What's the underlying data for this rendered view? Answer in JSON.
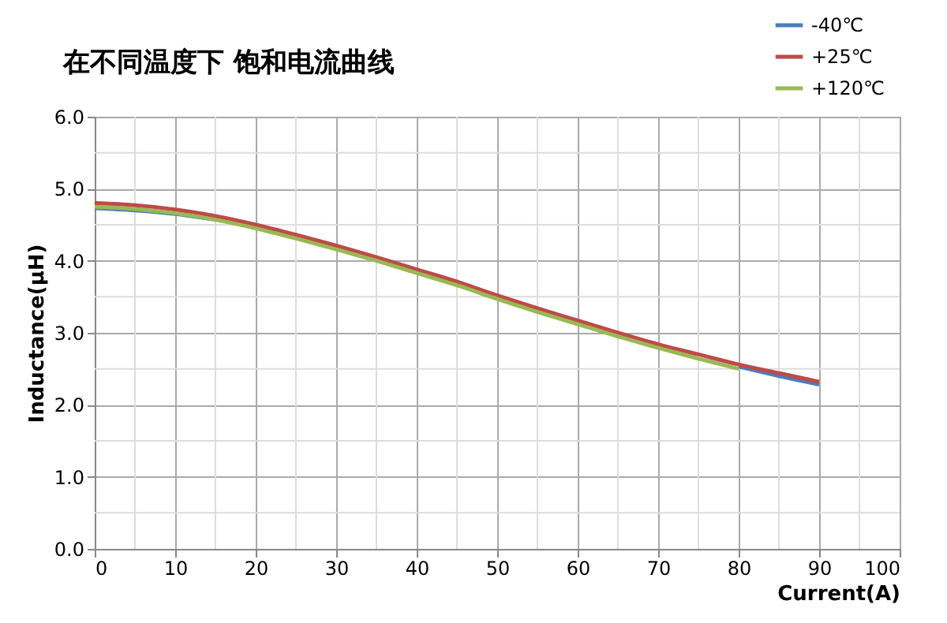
{
  "chart_data": {
    "type": "line",
    "title": "在不同温度下 饱和电流曲线",
    "xlabel": "Current(A)",
    "ylabel": "Inductance(μH)",
    "x": [
      0,
      5,
      10,
      15,
      20,
      25,
      30,
      35,
      40,
      45,
      50,
      55,
      60,
      65,
      70,
      75,
      80,
      85,
      90
    ],
    "series": [
      {
        "name": "-40℃",
        "color": "#4a7ebb",
        "values": [
          4.73,
          4.7,
          4.65,
          4.57,
          null,
          null,
          null,
          null,
          null,
          null,
          null,
          null,
          null,
          null,
          null,
          null,
          2.53,
          2.4,
          2.28
        ]
      },
      {
        "name": "+25℃",
        "color": "#be4b48",
        "values": [
          4.8,
          4.77,
          4.71,
          4.62,
          4.5,
          4.36,
          4.21,
          4.05,
          3.88,
          3.71,
          3.52,
          3.34,
          3.17,
          3.0,
          2.84,
          2.7,
          2.56,
          2.44,
          2.32
        ]
      },
      {
        "name": "+120℃",
        "color": "#98b954",
        "values": [
          4.75,
          4.72,
          4.66,
          4.57,
          4.45,
          4.31,
          4.16,
          4.0,
          3.83,
          3.66,
          3.47,
          3.29,
          3.12,
          2.95,
          2.79,
          2.64,
          2.5,
          null,
          null
        ]
      }
    ],
    "xlim": [
      0,
      100
    ],
    "xticks": [
      0,
      10,
      20,
      30,
      40,
      50,
      60,
      70,
      80,
      90,
      100
    ],
    "ylim": [
      0,
      6
    ],
    "yticks": [
      {
        "value": 0,
        "label": "0.0"
      },
      {
        "value": 1,
        "label": "1.0"
      },
      {
        "value": 2,
        "label": "2.0"
      },
      {
        "value": 3,
        "label": "3.0"
      },
      {
        "value": 4,
        "label": "4.0"
      },
      {
        "value": 5,
        "label": "5.0"
      },
      {
        "value": 6,
        "label": "6.0"
      }
    ],
    "grid": true,
    "legend": "top right",
    "marker": "none",
    "line_style": "solid"
  }
}
